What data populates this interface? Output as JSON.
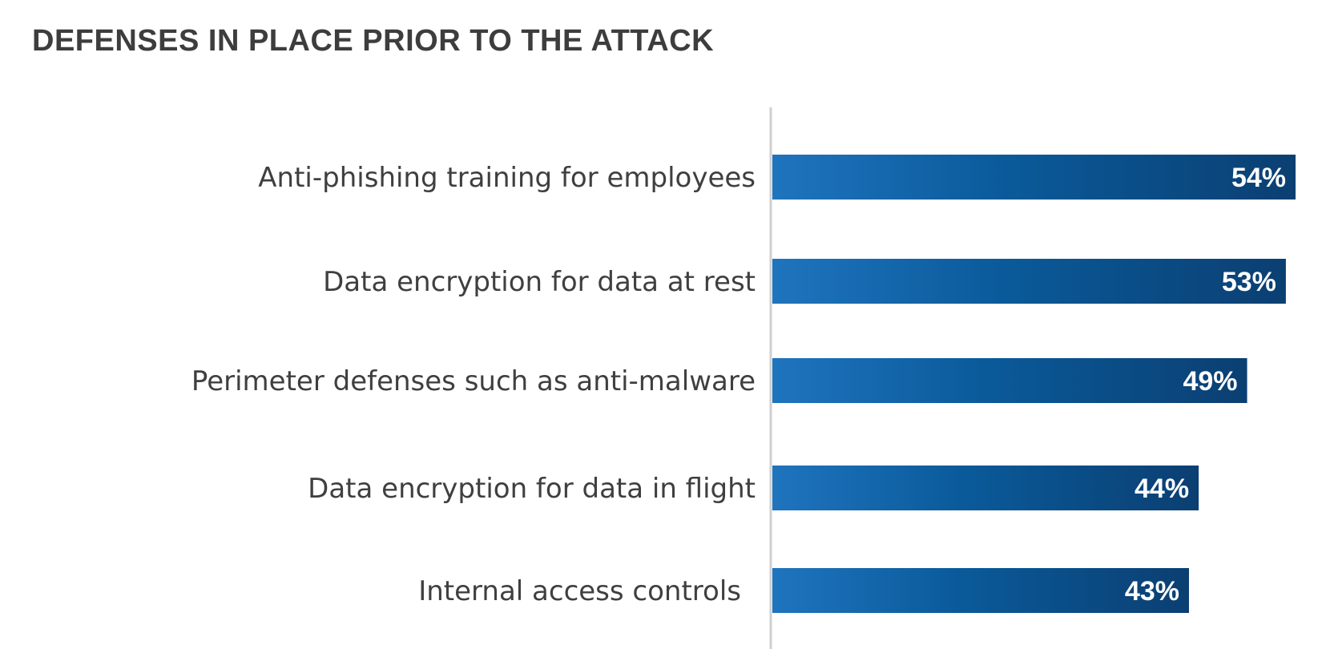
{
  "chart_data": {
    "type": "bar",
    "orientation": "horizontal",
    "title": "DEFENSES IN PLACE PRIOR TO THE ATTACK",
    "categories": [
      "Anti-phishing training for employees",
      "Data encryption for data at rest",
      "Perimeter defenses such as anti-malware",
      "Data encryption for data in flight",
      "Internal access controls"
    ],
    "values": [
      54,
      53,
      49,
      44,
      43
    ],
    "value_labels": [
      "54%",
      "53%",
      "49%",
      "44%",
      "43%"
    ],
    "unit": "%",
    "xlim": [
      0,
      54
    ],
    "grid": false,
    "colors": {
      "bar_start": "#1f74be",
      "bar_mid": "#0a5a9a",
      "bar_end": "#0b3f72",
      "axis": "#cfcfcf",
      "label_text": "#3f3f3f",
      "title_text": "#3d3d3d",
      "value_text": "#ffffff"
    }
  }
}
